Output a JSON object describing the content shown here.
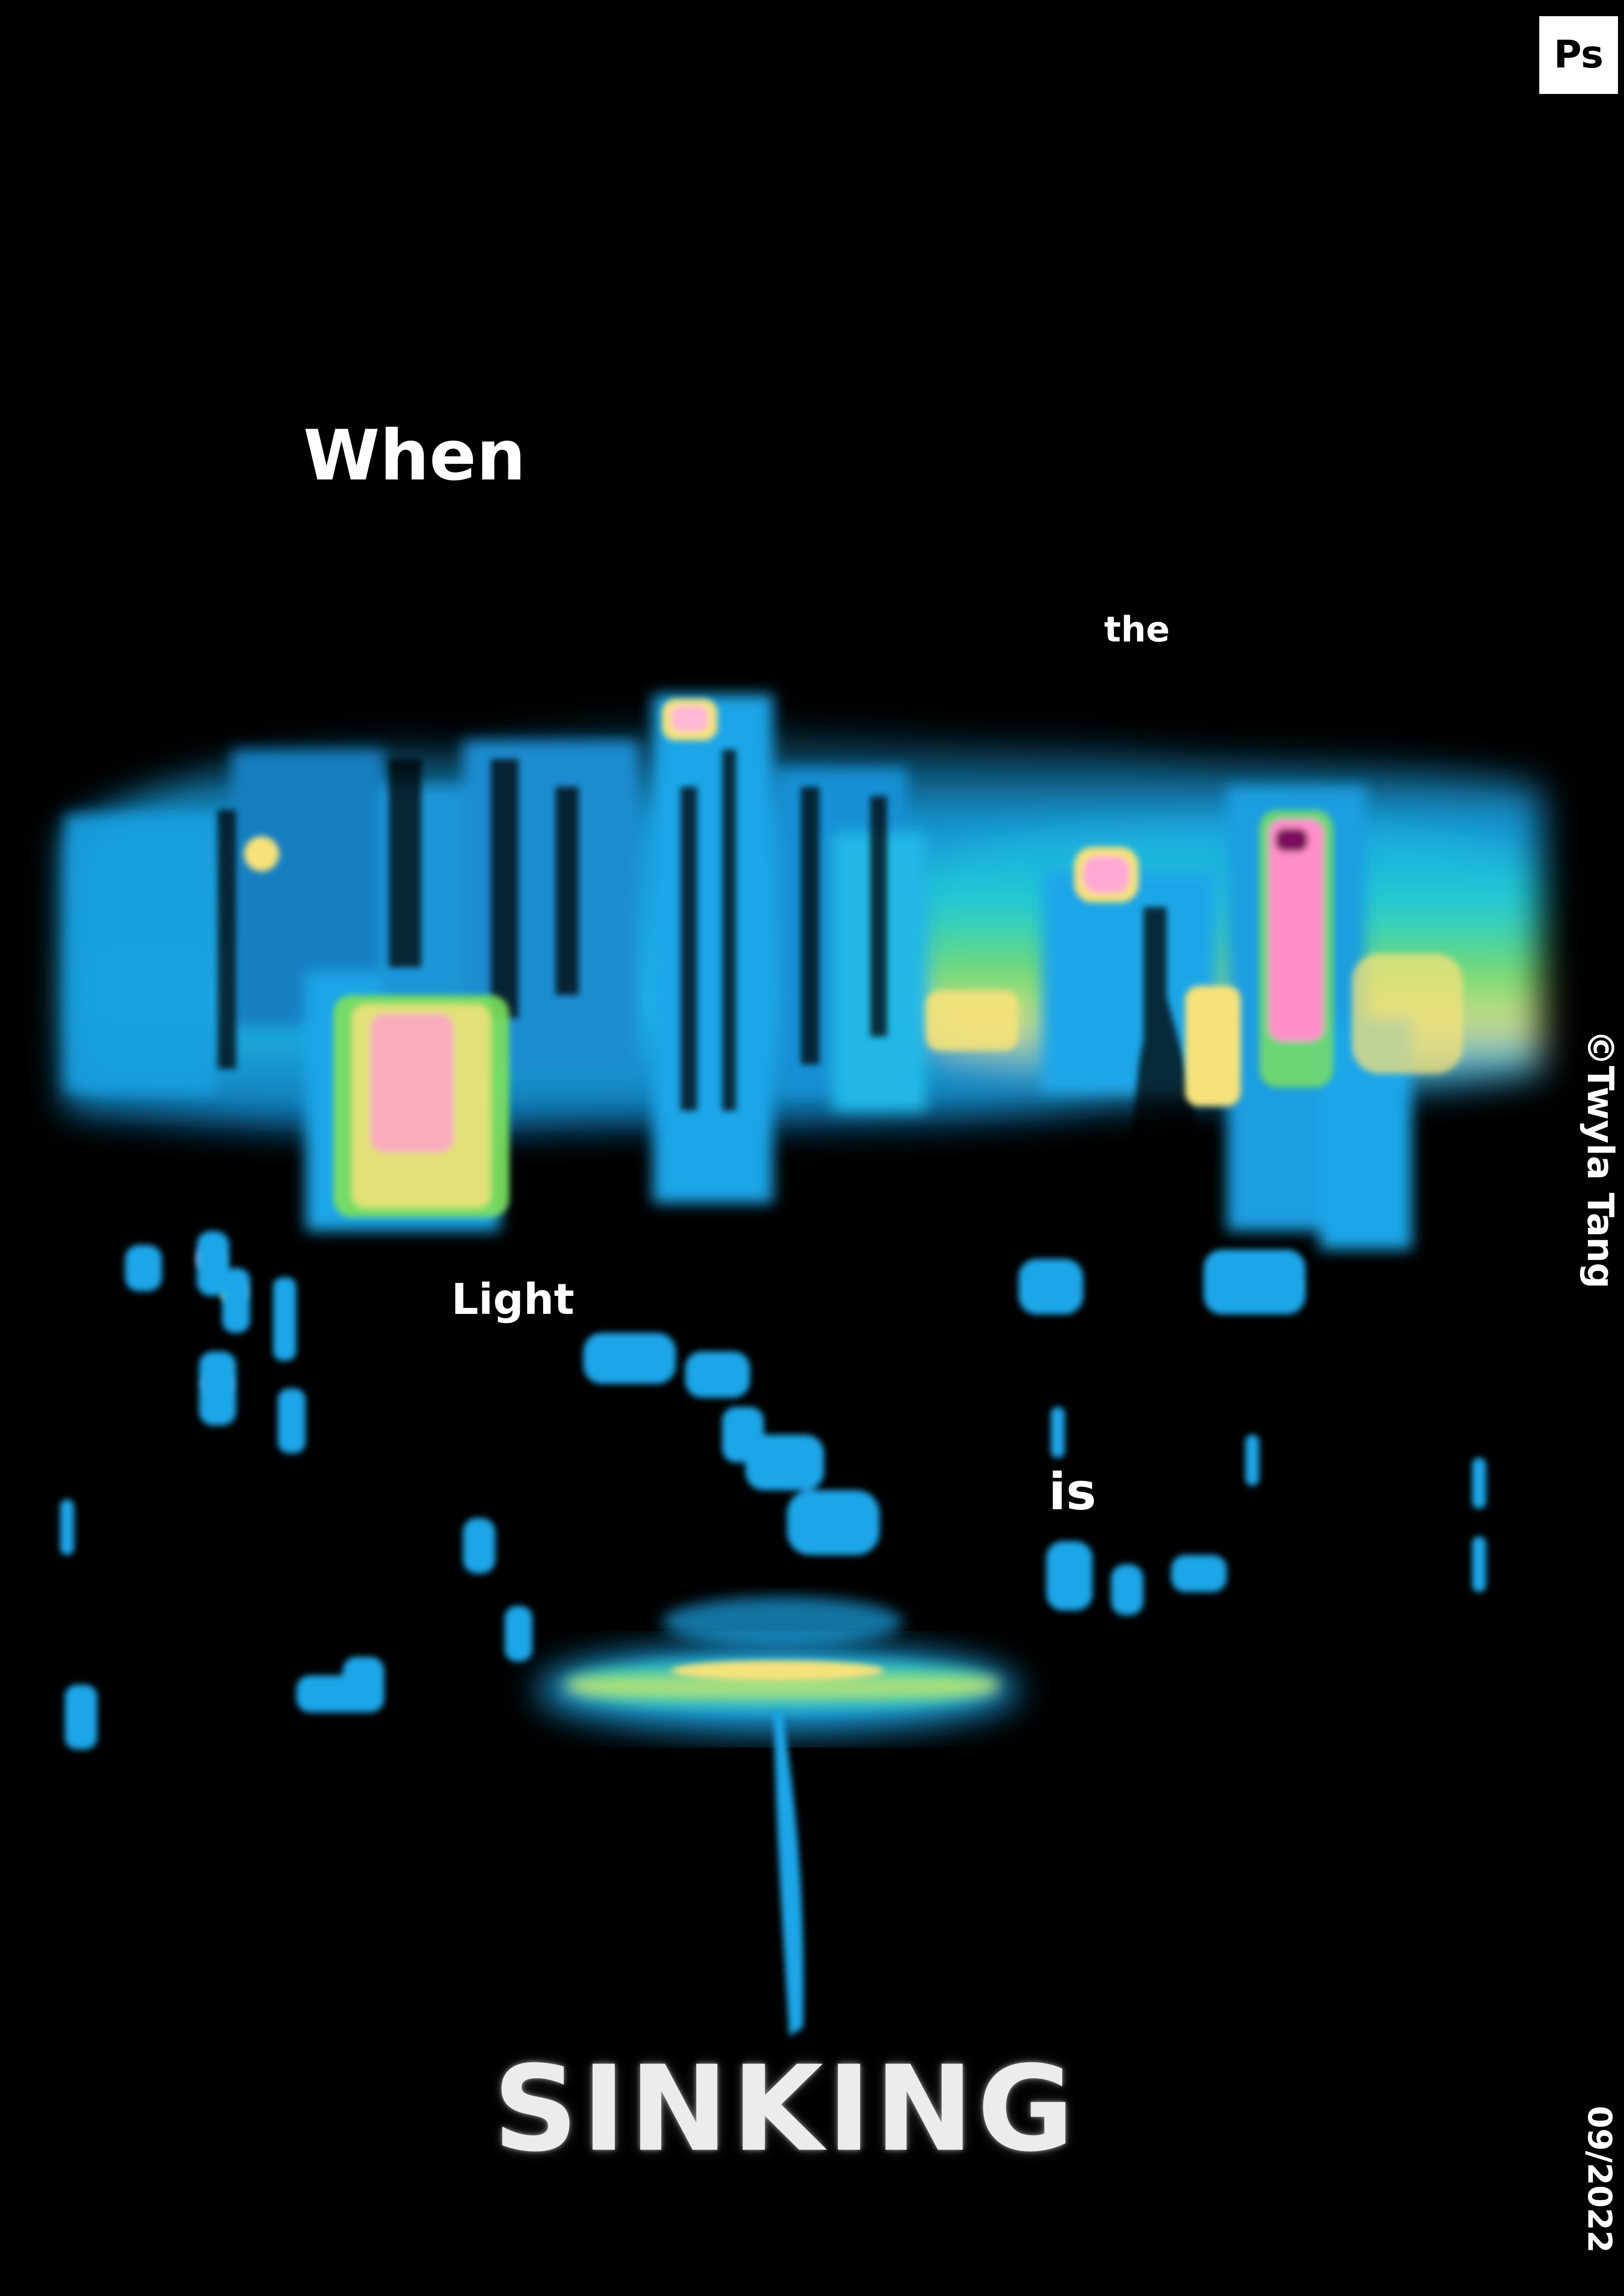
{
  "poster": {
    "words": {
      "when": "When",
      "the": "the",
      "light": "Light",
      "is": "is",
      "sinking": "SINKING"
    },
    "credit": "©Twyla Tang",
    "date": "09/2022",
    "badge": "Ps"
  },
  "colors": {
    "background": "#000000",
    "text": "#ffffff",
    "thermal_blue": "#1aa6e8",
    "thermal_cyan": "#22d3d0",
    "thermal_green": "#7ee25a",
    "thermal_yellow": "#f6e27a",
    "thermal_pink": "#ff8fc8",
    "thermal_magenta": "#c01e8a"
  },
  "artwork": {
    "description_icon": "thermal-city-skyline-image"
  }
}
